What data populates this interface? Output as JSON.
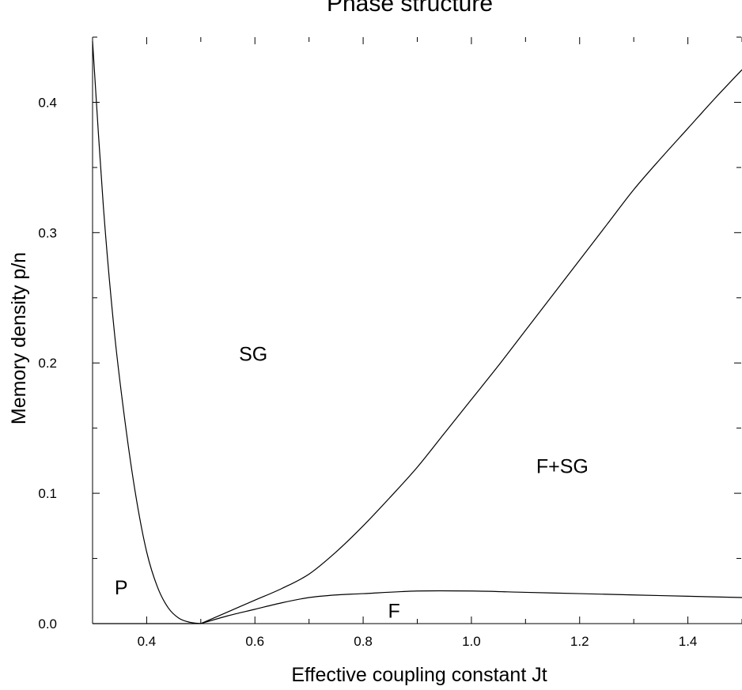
{
  "chart_data": {
    "type": "line",
    "title": "Phase structure",
    "xlabel": "Effective coupling constant Jt",
    "ylabel": "Memory density p/n",
    "xlim": [
      0.3,
      1.5
    ],
    "ylim": [
      0.0,
      0.45
    ],
    "x_ticks": [
      0.4,
      0.6,
      0.8,
      1.0,
      1.2,
      1.4
    ],
    "x_tick_labels": [
      "0.4",
      "0.6",
      "0.8",
      "1.0",
      "1.2",
      "1.4"
    ],
    "y_ticks": [
      0.0,
      0.1,
      0.2,
      0.3,
      0.4
    ],
    "y_tick_labels": [
      "0.0",
      "0.1",
      "0.2",
      "0.3",
      "0.4"
    ],
    "grid": false,
    "series": [
      {
        "x": [
          0.3,
          0.32,
          0.34,
          0.36,
          0.38,
          0.4,
          0.42,
          0.44,
          0.46,
          0.48,
          0.5
        ],
        "y": [
          0.447,
          0.32,
          0.225,
          0.155,
          0.098,
          0.055,
          0.028,
          0.012,
          0.004,
          0.001,
          0.0
        ]
      },
      {
        "x": [
          0.5,
          0.55,
          0.6,
          0.65,
          0.7,
          0.75,
          0.8,
          0.85,
          0.9,
          0.95,
          1.0,
          1.05,
          1.1,
          1.15,
          1.2,
          1.25,
          1.3,
          1.35,
          1.4,
          1.45,
          1.5
        ],
        "y": [
          0.0,
          0.009,
          0.018,
          0.027,
          0.038,
          0.055,
          0.075,
          0.097,
          0.12,
          0.146,
          0.172,
          0.198,
          0.225,
          0.252,
          0.279,
          0.306,
          0.333,
          0.357,
          0.38,
          0.403,
          0.425
        ]
      },
      {
        "x": [
          0.5,
          0.55,
          0.6,
          0.65,
          0.7,
          0.75,
          0.8,
          0.9,
          1.0,
          1.1,
          1.2,
          1.3,
          1.4,
          1.5
        ],
        "y": [
          0.0,
          0.006,
          0.011,
          0.016,
          0.02,
          0.022,
          0.023,
          0.025,
          0.025,
          0.024,
          0.023,
          0.022,
          0.021,
          0.02
        ]
      },
      {
        "x": [
          0.3,
          0.4,
          0.45,
          0.5
        ],
        "y": [
          0.0,
          0.0,
          0.0,
          0.0
        ]
      }
    ],
    "annotations": [
      {
        "text": "SG",
        "x": 0.597,
        "y": 0.207
      },
      {
        "text": "F+SG",
        "x": 1.168,
        "y": 0.121
      },
      {
        "text": "P",
        "x": 0.353,
        "y": 0.028
      },
      {
        "text": "F",
        "x": 0.857,
        "y": 0.01
      }
    ]
  }
}
